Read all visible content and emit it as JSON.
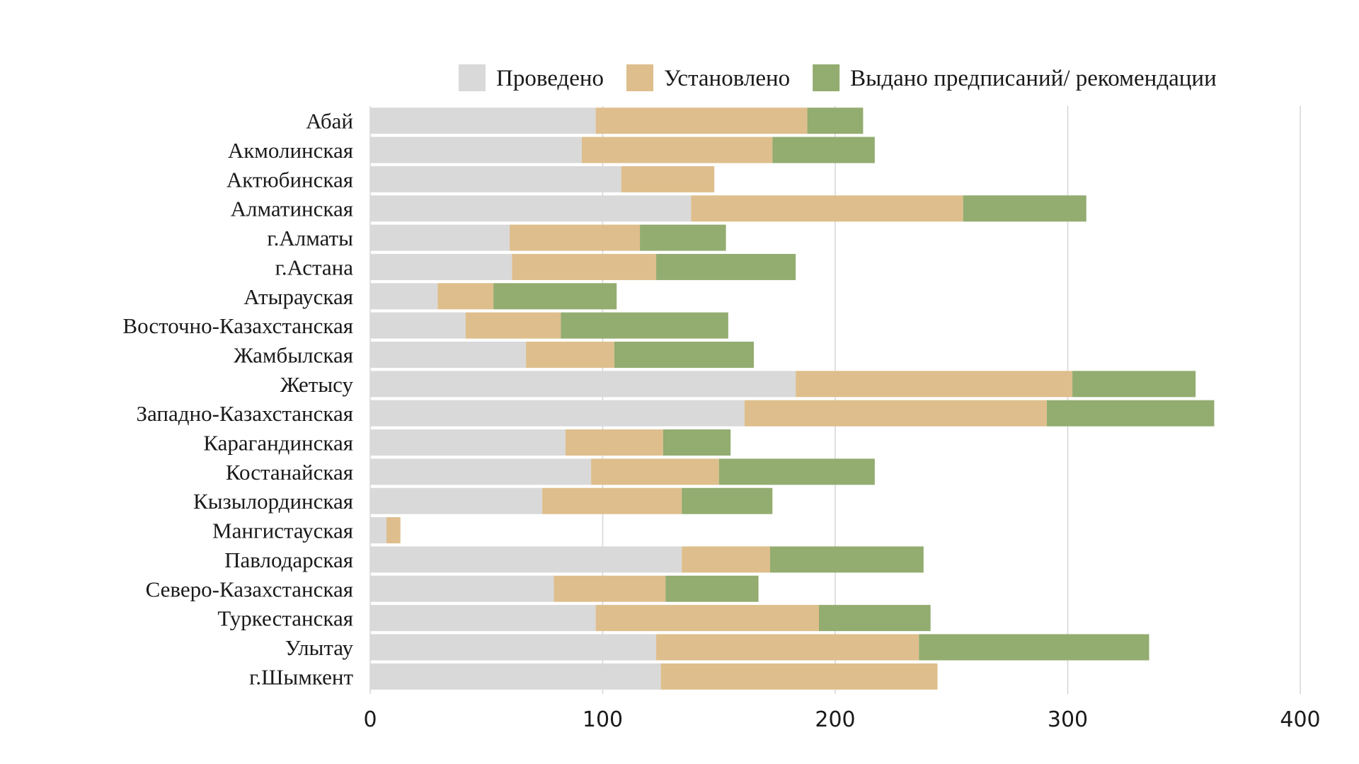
{
  "chart_data": {
    "type": "bar",
    "orientation": "horizontal",
    "stacked": true,
    "title": "",
    "xlabel": "",
    "ylabel": "",
    "xlim": [
      0,
      400
    ],
    "x_ticks": [
      0,
      100,
      200,
      300,
      400
    ],
    "grid": "vertical",
    "legend_position": "top",
    "categories": [
      "Абай",
      "Акмолинская",
      "Актюбинская",
      "Алматинская",
      "г.Алматы",
      "г.Астана",
      "Атырауская",
      "Восточно-Казахстанская",
      "Жамбылская",
      "Жетысу",
      "Западно-Казахстанская",
      "Карагандинская",
      "Костанайская",
      "Кызылординская",
      "Мангистауская",
      "Павлодарская",
      "Северо-Казахстанская",
      "Туркестанская",
      "Улытау",
      "г.Шымкент"
    ],
    "series": [
      {
        "name": "Проведено",
        "color": "#d9d9d9",
        "values": [
          97,
          91,
          108,
          138,
          60,
          61,
          29,
          41,
          67,
          183,
          161,
          84,
          95,
          74,
          7,
          134,
          79,
          97,
          123,
          125
        ]
      },
      {
        "name": "Установлено",
        "color": "#debe8c",
        "values": [
          91,
          82,
          40,
          117,
          56,
          62,
          24,
          41,
          38,
          119,
          130,
          42,
          55,
          60,
          6,
          38,
          48,
          96,
          113,
          119
        ]
      },
      {
        "name": "Выдано предписаний/ рекомендации",
        "color": "#93ac70",
        "values": [
          24,
          44,
          0,
          53,
          37,
          60,
          53,
          72,
          60,
          53,
          72,
          29,
          67,
          39,
          0,
          66,
          40,
          48,
          99,
          0
        ]
      }
    ]
  }
}
